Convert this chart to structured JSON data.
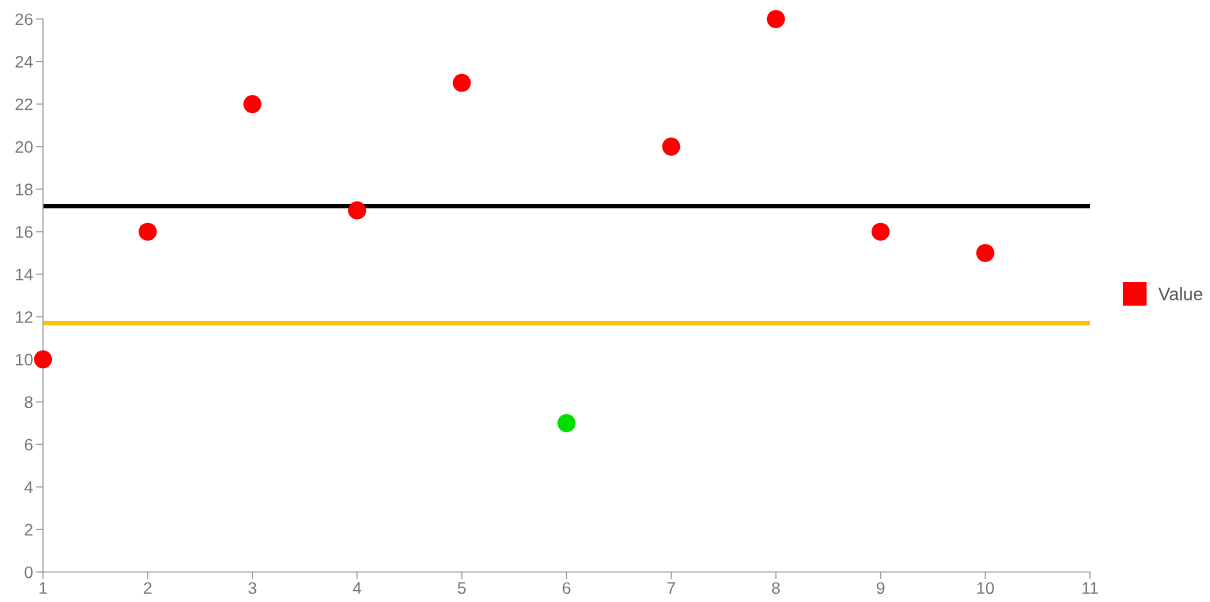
{
  "chart_data": {
    "type": "scatter",
    "x": [
      1,
      2,
      3,
      4,
      5,
      6,
      7,
      8,
      9,
      10
    ],
    "series": [
      {
        "name": "Value",
        "color": "#ff0000",
        "values": [
          10,
          16,
          22,
          17,
          23,
          7,
          20,
          26,
          16,
          15
        ],
        "colors": [
          "#ff0000",
          "#ff0000",
          "#ff0000",
          "#ff0000",
          "#ff0000",
          "#00e000",
          "#ff0000",
          "#ff0000",
          "#ff0000",
          "#ff0000"
        ]
      }
    ],
    "xlim": [
      1,
      11
    ],
    "xticks": [
      1,
      2,
      3,
      4,
      5,
      6,
      7,
      8,
      9,
      10,
      11
    ],
    "ylim": [
      0,
      26
    ],
    "yticks": [
      0,
      2,
      4,
      6,
      8,
      10,
      12,
      14,
      16,
      18,
      20,
      22,
      24,
      26
    ],
    "ref_lines": [
      {
        "axis": "y",
        "value": 17.2,
        "label": null,
        "color": "#000000"
      },
      {
        "axis": "y",
        "value": 11.7,
        "label": null,
        "color": "#ffc000"
      }
    ],
    "marker": "circle",
    "grid": false,
    "legend": "right"
  }
}
